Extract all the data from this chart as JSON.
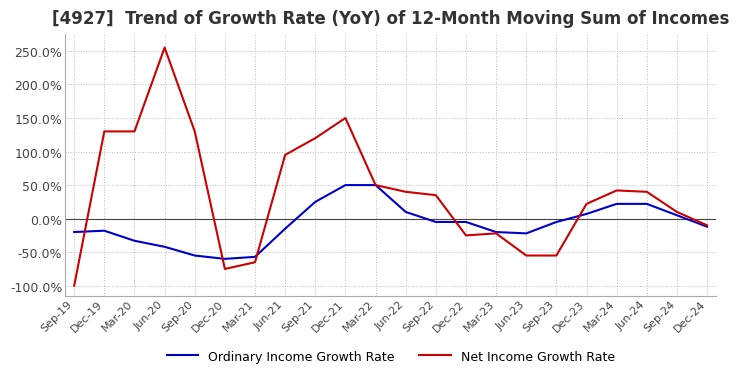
{
  "title": "[4927]  Trend of Growth Rate (YoY) of 12-Month Moving Sum of Incomes",
  "title_fontsize": 12,
  "title_color": "#333333",
  "background_color": "#ffffff",
  "grid_color": "#bbbbbb",
  "line1_color": "#0000cc",
  "line2_color": "#cc0000",
  "line1_label": "Ordinary Income Growth Rate",
  "line2_label": "Net Income Growth Rate",
  "line_width": 1.5,
  "x_labels": [
    "Sep-19",
    "Dec-19",
    "Mar-20",
    "Jun-20",
    "Sep-20",
    "Dec-20",
    "Mar-21",
    "Jun-21",
    "Sep-21",
    "Dec-21",
    "Mar-22",
    "Jun-22",
    "Sep-22",
    "Dec-22",
    "Mar-23",
    "Jun-23",
    "Sep-23",
    "Dec-23",
    "Mar-24",
    "Jun-24",
    "Sep-24",
    "Dec-24"
  ],
  "ordinary_income": [
    -0.2,
    -0.18,
    -0.33,
    -0.42,
    -0.55,
    -0.6,
    -0.57,
    -0.15,
    0.25,
    0.5,
    0.5,
    0.1,
    -0.05,
    -0.05,
    -0.2,
    -0.22,
    -0.05,
    0.07,
    0.22,
    0.22,
    0.05,
    -0.12
  ],
  "net_income": [
    -1.0,
    1.3,
    1.3,
    2.55,
    1.3,
    -0.75,
    -0.65,
    0.95,
    1.2,
    1.5,
    0.5,
    0.4,
    0.35,
    -0.25,
    -0.22,
    -0.55,
    -0.55,
    0.22,
    0.42,
    0.4,
    0.1,
    -0.1
  ],
  "ylim": [
    -1.15,
    2.75
  ],
  "yticks": [
    -1.0,
    -0.5,
    0.0,
    0.5,
    1.0,
    1.5,
    2.0,
    2.5
  ],
  "ytick_labels": [
    "-100.0%",
    "-50.0%",
    "0.0%",
    "50.0%",
    "100.0%",
    "150.0%",
    "200.0%",
    "250.0%"
  ],
  "tick_fontsize": 9,
  "xlabel_fontsize": 8,
  "legend_fontsize": 9
}
